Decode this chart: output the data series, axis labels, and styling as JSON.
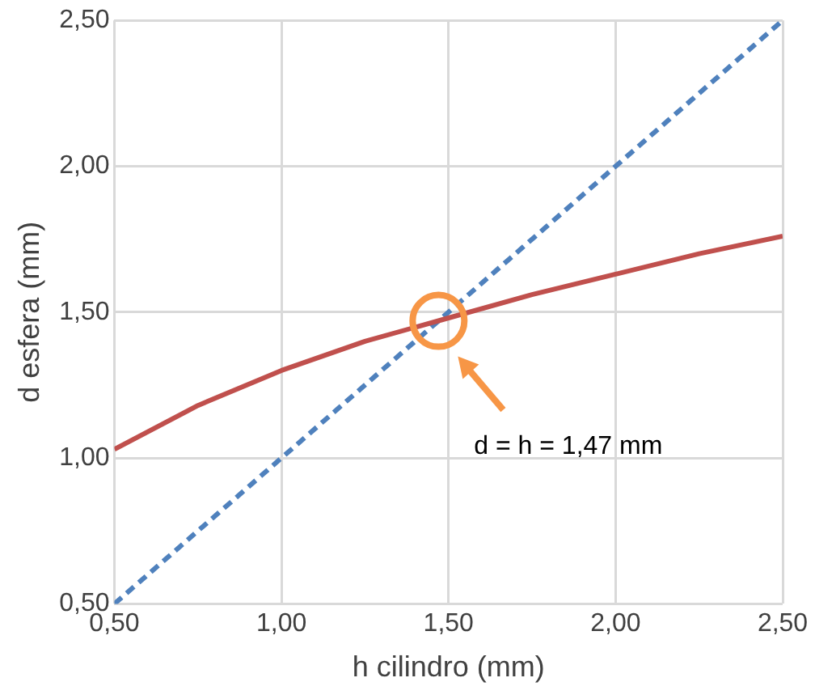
{
  "chart_data": {
    "type": "line",
    "xlabel": "h cilindro (mm)",
    "ylabel": "d esfera (mm)",
    "xlim": [
      0.5,
      2.5
    ],
    "ylim": [
      0.5,
      2.5
    ],
    "xticks": [
      {
        "value": 0.5,
        "label": "0,50"
      },
      {
        "value": 1,
        "label": "1,00"
      },
      {
        "value": 1.5,
        "label": "1,50"
      },
      {
        "value": 2,
        "label": "2,00"
      },
      {
        "value": 2.5,
        "label": "2,50"
      }
    ],
    "yticks": [
      {
        "value": 0.5,
        "label": "0,50"
      },
      {
        "value": 1,
        "label": "1,00"
      },
      {
        "value": 1.5,
        "label": "1,50"
      },
      {
        "value": 2,
        "label": "2,00"
      },
      {
        "value": 2.5,
        "label": "2,50"
      }
    ],
    "grid": true,
    "marker": "none",
    "series": [
      {
        "color": "#c0504d",
        "line_style": "solid",
        "x": [
          0.5,
          0.75,
          1,
          1.25,
          1.5,
          1.75,
          2,
          2.25,
          2.5
        ],
        "values": [
          1.03,
          1.18,
          1.3,
          1.4,
          1.48,
          1.56,
          1.63,
          1.7,
          1.76
        ]
      },
      {
        "color": "#4f81bd",
        "line_style": "dashed",
        "x": [
          0.5,
          2.5
        ],
        "values": [
          0.5,
          2.5
        ]
      }
    ],
    "annotations": [
      "d = h = 1,47 mm"
    ]
  }
}
